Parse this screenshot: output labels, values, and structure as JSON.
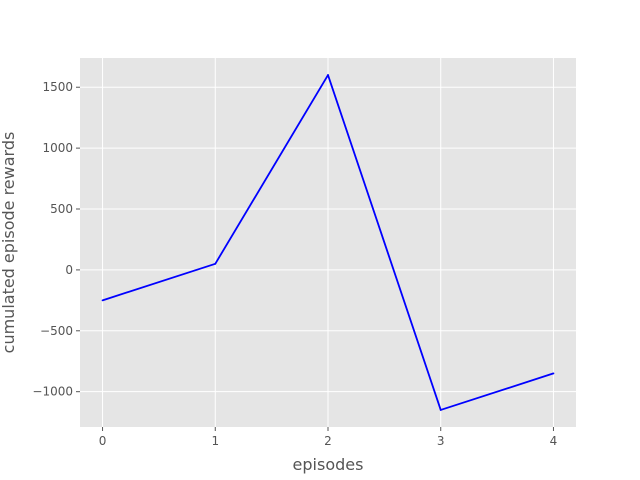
{
  "chart_data": {
    "type": "line",
    "title": "",
    "xlabel": "episodes",
    "ylabel": "cumulated episode rewards",
    "x": [
      0,
      1,
      2,
      3,
      4
    ],
    "series": [
      {
        "values": [
          -250,
          50,
          1600,
          -1150,
          -850
        ],
        "color": "#0000ff"
      }
    ],
    "xlim": [
      -0.2,
      4.2
    ],
    "ylim": [
      -1290,
      1740
    ],
    "xticks": [
      0,
      1,
      2,
      3,
      4
    ],
    "xtick_labels": [
      "0",
      "1",
      "2",
      "3",
      "4"
    ],
    "yticks": [
      -1000,
      -500,
      0,
      500,
      1000,
      1500
    ],
    "ytick_labels": [
      "−1000",
      "−500",
      "0",
      "500",
      "1000",
      "1500"
    ],
    "grid": true,
    "legend": "none",
    "colors": {
      "plot_background": "#e5e5e5",
      "grid": "#ffffff",
      "text": "#555555",
      "line": "#0000ff"
    }
  }
}
